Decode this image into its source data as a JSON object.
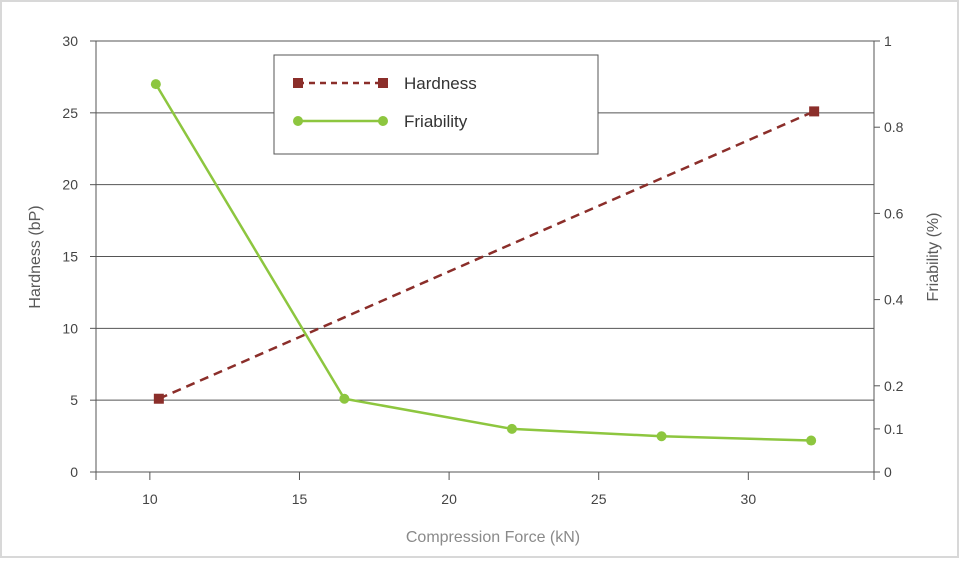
{
  "chart_data": {
    "type": "line",
    "xlabel": "Compression Force (kN)",
    "ylabel": "Hardness (bP)",
    "y2label": "Friability (%)",
    "xlim": [
      8.2,
      34.2
    ],
    "ylim": [
      0,
      30
    ],
    "y2lim": [
      0,
      1
    ],
    "x_ticks": [
      10,
      15,
      20,
      25,
      30
    ],
    "y_ticks": [
      0,
      5,
      10,
      15,
      20,
      25,
      30
    ],
    "y2_ticks": [
      0,
      0.1,
      0.2,
      0.4,
      0.6,
      0.8,
      1
    ],
    "grid": true,
    "legend_position": "top-left (inside plot)",
    "series": [
      {
        "name": "Hardness",
        "axis": "left",
        "color": "#8b2e2a",
        "line_style": "dashed",
        "marker": "square",
        "x": [
          10.3,
          32.2
        ],
        "y": [
          5.1,
          25.1
        ]
      },
      {
        "name": "Friability",
        "axis": "right",
        "color": "#8dc63f",
        "line_style": "solid",
        "marker": "circle",
        "x": [
          10.2,
          16.5,
          22.1,
          27.1,
          32.1
        ],
        "y": [
          0.9,
          0.17,
          0.1,
          0.083,
          0.073
        ]
      }
    ]
  }
}
